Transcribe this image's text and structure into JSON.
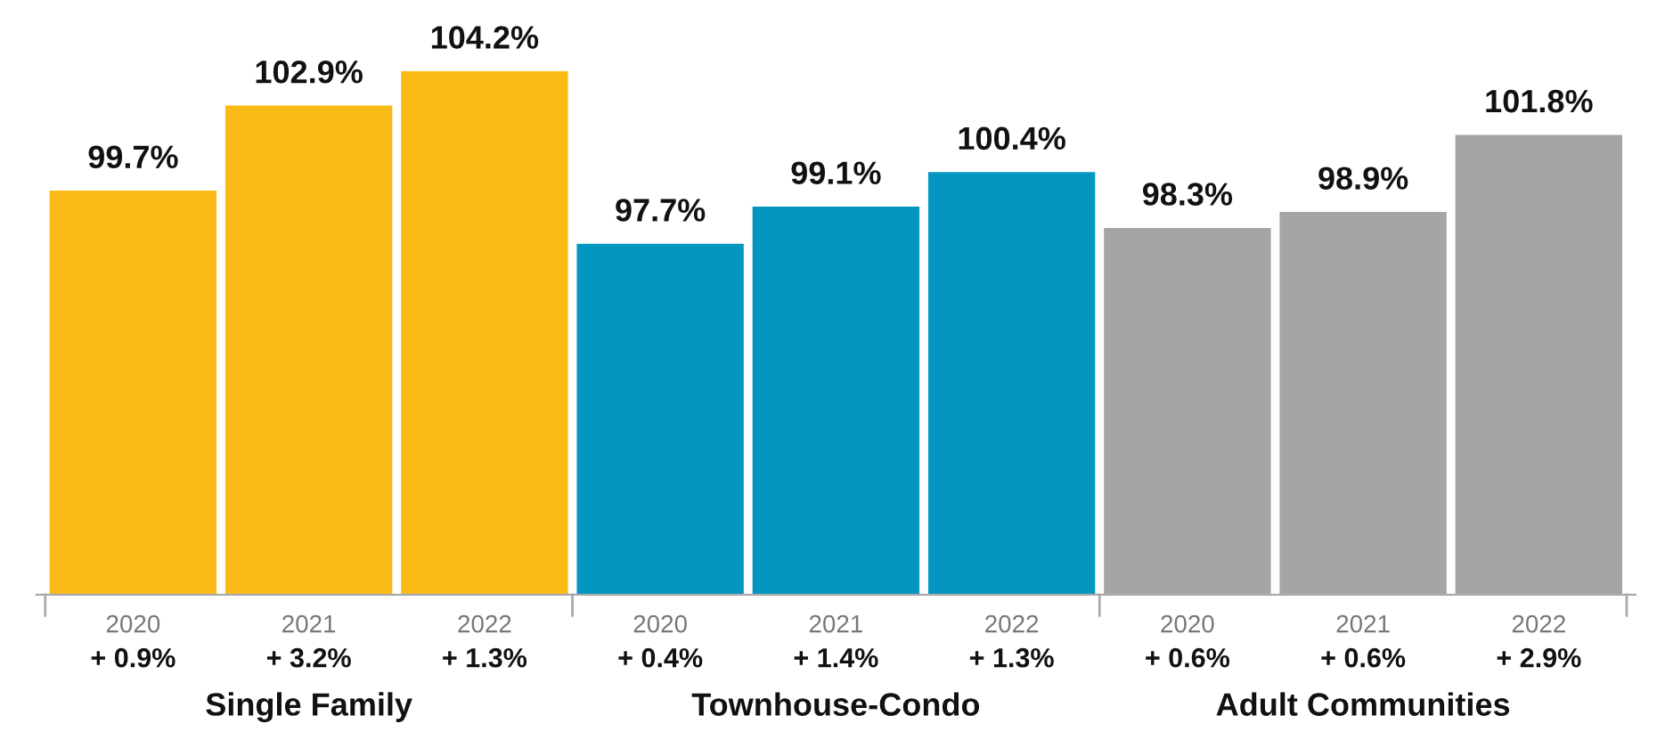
{
  "chart_data": {
    "type": "bar",
    "categories": [
      "2020",
      "2021",
      "2022",
      "2020",
      "2021",
      "2022",
      "2020",
      "2021",
      "2022"
    ],
    "series": [
      {
        "color": "#fbbb16",
        "values": [
          99.7,
          102.9,
          104.2,
          null,
          null,
          null,
          null,
          null,
          null
        ],
        "value_labels": [
          "99.7%",
          "102.9%",
          "104.2%",
          null,
          null,
          null,
          null,
          null,
          null
        ]
      },
      {
        "color": "#0296c0",
        "values": [
          null,
          null,
          null,
          97.7,
          99.1,
          100.4,
          null,
          null,
          null
        ],
        "value_labels": [
          null,
          null,
          null,
          "97.7%",
          "99.1%",
          "100.4%",
          null,
          null,
          null
        ]
      },
      {
        "color": "#a5a5a5",
        "values": [
          null,
          null,
          null,
          null,
          null,
          null,
          98.3,
          98.9,
          101.8
        ],
        "value_labels": [
          null,
          null,
          null,
          null,
          null,
          null,
          "98.3%",
          "98.9%",
          "101.8%"
        ]
      }
    ],
    "ylim": [
      84.5,
      104.2
    ],
    "annotations": [
      "+ 0.9%",
      "+ 3.2%",
      "+ 1.3%",
      "+ 0.4%",
      "+ 1.4%",
      "+ 1.3%",
      "+ 0.6%",
      "+ 0.6%",
      "+ 2.9%",
      "Single Family",
      "Townhouse-Condo",
      "Adult Communities"
    ],
    "grid": false,
    "legend": false
  }
}
